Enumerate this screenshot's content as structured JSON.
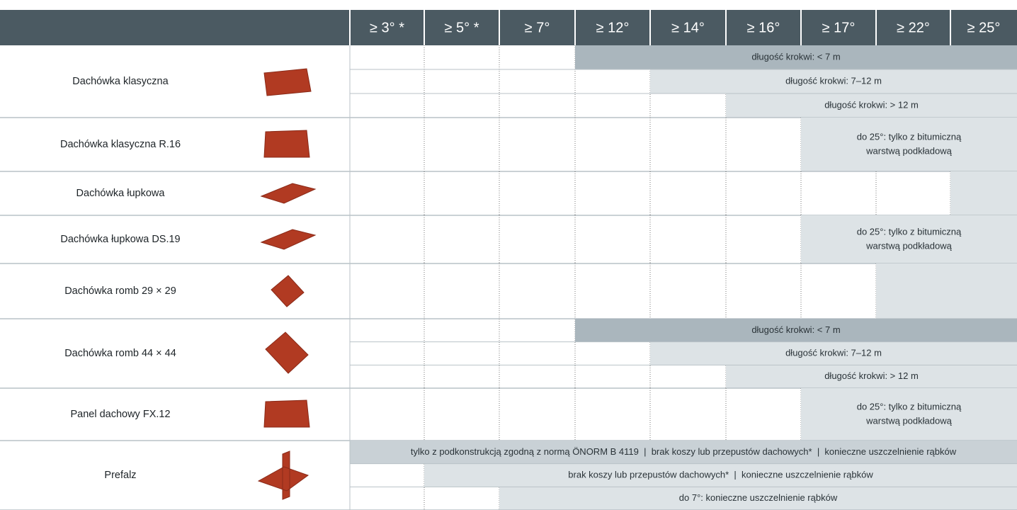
{
  "header": {
    "columns": [
      "≥ 3° *",
      "≥ 5° *",
      "≥ 7°",
      "≥ 12°",
      "≥ 14°",
      "≥ 16°",
      "≥ 17°",
      "≥ 22°",
      "≥ 25°"
    ]
  },
  "rows": [
    {
      "name": "Dachówka klasyczna",
      "notes": [
        [
          "długość krokwi: < 7 m"
        ],
        [
          "długość krokwi: 7–12 m"
        ],
        [
          "długość krokwi: > 12 m"
        ]
      ]
    },
    {
      "name": "Dachówka klasyczna R.16",
      "notes": [
        [
          "do 25°: tylko z bitumiczną",
          "warstwą podkładową"
        ]
      ]
    },
    {
      "name": "Dachówka łupkowa",
      "notes": []
    },
    {
      "name": "Dachówka łupkowa DS.19",
      "notes": [
        [
          "do 25°: tylko z bitumiczną",
          "warstwą podkładową"
        ]
      ]
    },
    {
      "name": "Dachówka romb 29 × 29",
      "notes": []
    },
    {
      "name": "Dachówka romb 44 × 44",
      "notes": [
        [
          "długość krokwi: < 7 m"
        ],
        [
          "długość krokwi: 7–12 m"
        ],
        [
          "długość krokwi: > 12 m"
        ]
      ]
    },
    {
      "name": "Panel dachowy FX.12",
      "notes": [
        [
          "do 25°: tylko z bitumiczną",
          "warstwą podkładową"
        ]
      ]
    },
    {
      "name": "Prefalz",
      "notes": [
        [
          "tylko z podkonstrukcją zgodną z normą ÖNORM B 4119  |  brak koszy lub przepustów dachowych*  |  konieczne uszczelnienie rąbków"
        ],
        [
          "brak koszy lub przepustów dachowych*  |  konieczne uszczelnienie rąbków"
        ],
        [
          "do 7°: konieczne uszczelnienie rąbków"
        ]
      ]
    }
  ]
}
